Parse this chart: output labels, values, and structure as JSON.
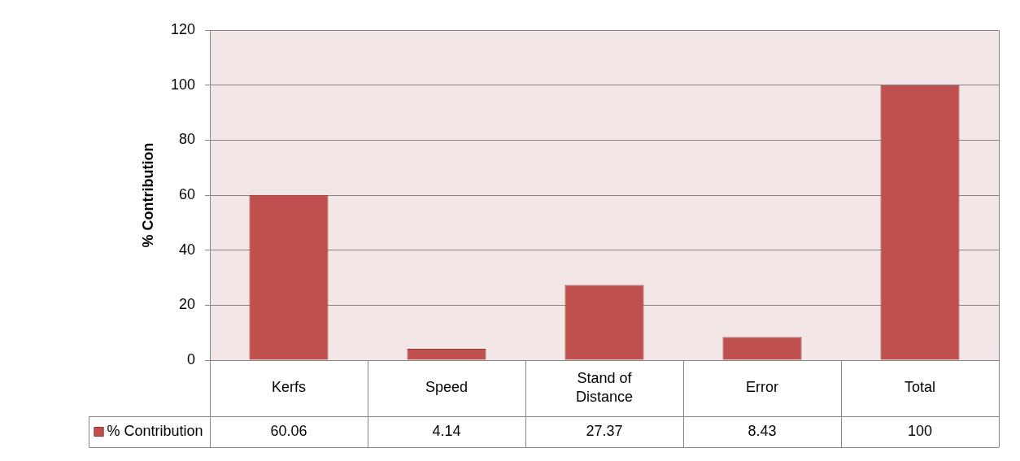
{
  "chart_data": {
    "type": "bar",
    "ylabel": "% Contribution",
    "categories": [
      "Kerfs",
      "Speed",
      "Stand of\nDistance",
      "Error",
      "Total"
    ],
    "series": [
      {
        "name": "% Contribution",
        "color": "#c0504d",
        "values": [
          60.06,
          4.14,
          27.37,
          8.43,
          100
        ]
      }
    ],
    "ylim": [
      0,
      120
    ],
    "yticks": [
      0,
      20,
      40,
      60,
      80,
      100,
      120
    ],
    "grid": "y",
    "legend": "bottom",
    "data_labels": true
  }
}
